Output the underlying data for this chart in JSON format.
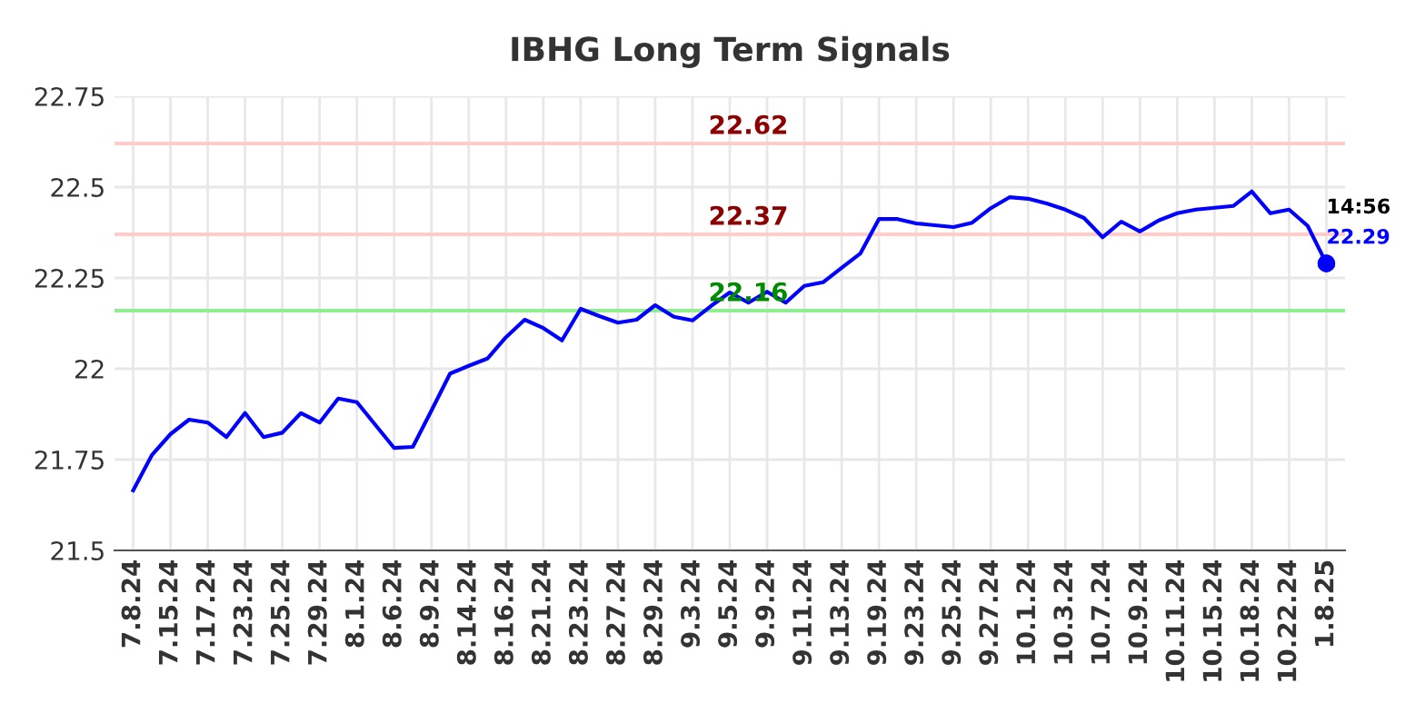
{
  "chart_data": {
    "type": "line",
    "title": "IBHG Long Term Signals",
    "categories": [
      "7.8.24",
      null,
      "7.15.24",
      null,
      "7.17.24",
      null,
      "7.23.24",
      null,
      "7.25.24",
      null,
      "7.29.24",
      null,
      "8.1.24",
      null,
      "8.6.24",
      null,
      "8.9.24",
      null,
      "8.14.24",
      null,
      "8.16.24",
      null,
      "8.21.24",
      null,
      "8.23.24",
      null,
      "8.27.24",
      null,
      "8.29.24",
      null,
      "9.3.24",
      null,
      "9.5.24",
      null,
      "9.9.24",
      null,
      "9.11.24",
      null,
      "9.13.24",
      null,
      "9.19.24",
      null,
      "9.23.24",
      null,
      "9.25.24",
      null,
      "9.27.24",
      null,
      "10.1.24",
      null,
      "10.3.24",
      null,
      "10.7.24",
      null,
      "10.9.24",
      null,
      "10.11.24",
      null,
      "10.15.24",
      null,
      "10.18.24",
      null,
      "10.22.24",
      null,
      "1.8.25"
    ],
    "series": [
      {
        "color": "#0000ff",
        "values": [
          21.665,
          21.762,
          21.82,
          21.86,
          21.852,
          21.812,
          21.878,
          21.812,
          21.824,
          21.878,
          21.852,
          21.918,
          21.908,
          21.845,
          21.782,
          21.785,
          21.885,
          21.987,
          22.008,
          22.028,
          22.087,
          22.135,
          22.112,
          22.078,
          22.165,
          22.145,
          22.127,
          22.135,
          22.175,
          22.143,
          22.133,
          22.173,
          22.21,
          22.182,
          22.212,
          22.182,
          22.228,
          22.238,
          22.278,
          22.317,
          22.412,
          22.412,
          22.4,
          22.395,
          22.39,
          22.402,
          22.442,
          22.472,
          22.468,
          22.455,
          22.438,
          22.415,
          22.362,
          22.405,
          22.378,
          22.408,
          22.428,
          22.438,
          22.443,
          22.448,
          22.488,
          22.428,
          22.438,
          22.393,
          22.29
        ]
      }
    ],
    "ylim": [
      21.5,
      22.75
    ],
    "yticks": [
      21.5,
      21.75,
      22,
      22.25,
      22.5,
      22.75
    ],
    "grid": true,
    "legend": false,
    "marker": "none",
    "line_style": "solid",
    "ref_lines": [
      {
        "axis": "y",
        "value": 22.62,
        "label": "22.62",
        "color": "#ffcccc"
      },
      {
        "axis": "y",
        "value": 22.37,
        "label": "22.37",
        "color": "#ffcccc"
      },
      {
        "axis": "y",
        "value": 22.16,
        "label": "22.16",
        "color": "#90ee90"
      }
    ],
    "annotations": [
      {
        "text": "14:56",
        "x": "1.8.25",
        "y": 22.29
      },
      {
        "text": "22.29",
        "x": "1.8.25",
        "y": 22.29
      }
    ]
  }
}
